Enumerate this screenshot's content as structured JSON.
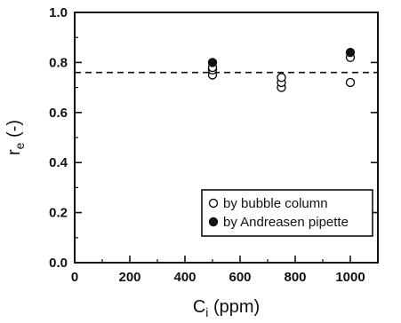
{
  "chart_data": {
    "type": "scatter",
    "xlabel_main": "C",
    "xlabel_sub": "i",
    "xlabel_unit": " (ppm)",
    "ylabel_main": "r",
    "ylabel_sub": "e",
    "ylabel_unit": " (-)",
    "xlim": [
      0,
      1100
    ],
    "ylim": [
      0.0,
      1.0
    ],
    "x_ticks": [
      0,
      200,
      400,
      600,
      800,
      1000
    ],
    "y_ticks": [
      0.0,
      0.2,
      0.4,
      0.6,
      0.8,
      1.0
    ],
    "y_tick_labels": [
      "0.0",
      "0.2",
      "0.4",
      "0.6",
      "0.8",
      "1.0"
    ],
    "reference_line": {
      "y": 0.76,
      "style": "dashed"
    },
    "legend_position": "lower-right",
    "series": [
      {
        "name": "by bubble column",
        "marker": "open-circle",
        "points": [
          {
            "x": 500,
            "y": 0.75
          },
          {
            "x": 500,
            "y": 0.77
          },
          {
            "x": 500,
            "y": 0.78
          },
          {
            "x": 750,
            "y": 0.7
          },
          {
            "x": 750,
            "y": 0.72
          },
          {
            "x": 750,
            "y": 0.74
          },
          {
            "x": 1000,
            "y": 0.72
          },
          {
            "x": 1000,
            "y": 0.82
          }
        ]
      },
      {
        "name": "by Andreasen pipette",
        "marker": "filled-circle",
        "points": [
          {
            "x": 500,
            "y": 0.8
          },
          {
            "x": 1000,
            "y": 0.84
          }
        ]
      }
    ]
  }
}
